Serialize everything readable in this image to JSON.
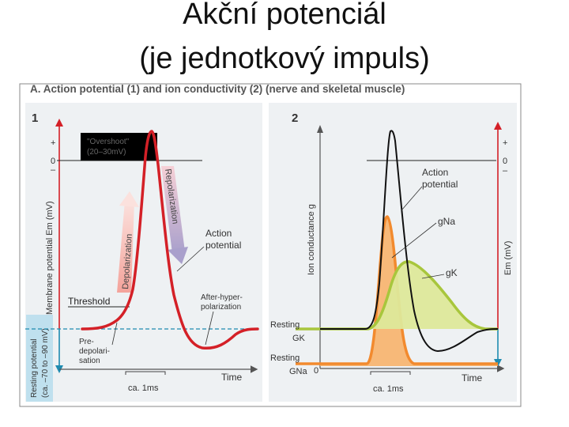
{
  "slide": {
    "title_line1": "Akční potenciál",
    "title_line2": "(je jednotkový impuls)"
  },
  "figure": {
    "header": "A. Action potential (1) and ion conductivity (2) (nerve and skeletal muscle)",
    "panel1": {
      "number": "1",
      "plus": "+",
      "zero": "0",
      "minus": "–",
      "overshoot_line1": "\"Overshoot\"",
      "overshoot_line2": "(20–30mV)",
      "y_label": "Membrane potential Em (mV)",
      "resting_line1": "Resting potential",
      "resting_line2": "(ca. –70 to –90 mV)",
      "depolarization": "Depolarization",
      "repolarization": "Repolarization",
      "action_potential_line1": "Action",
      "action_potential_line2": "potential",
      "threshold": "Threshold",
      "after_line1": "After-hyper-",
      "after_line2": "polarization",
      "pre_line1": "Pre-",
      "pre_line2": "depolari-",
      "pre_line3": "sation",
      "time": "Time",
      "scale": "ca. 1ms"
    },
    "panel2": {
      "number": "2",
      "plus": "+",
      "zero": "0",
      "minus": "–",
      "y_label": "Ion conductance g",
      "y_label_right": "Em (mV)",
      "action_potential_line1": "Action",
      "action_potential_line2": "potential",
      "gna": "gNa",
      "gk": "gK",
      "resting_gk_line1": "Resting",
      "resting_gk_line2": "GK",
      "resting_gna_line1": "Resting",
      "resting_gna_line2": "GNa",
      "bottom_zero": "0",
      "time": "Time",
      "scale": "ca. 1ms"
    },
    "colors": {
      "panel_bg": "#eef1f3",
      "ap_red": "#d42027",
      "gna_orange": "#f28a2e",
      "gk_green": "#a8c63c",
      "axis_blue": "#1f8bb0",
      "resting_blue_bg": "#bfe0ee"
    }
  }
}
